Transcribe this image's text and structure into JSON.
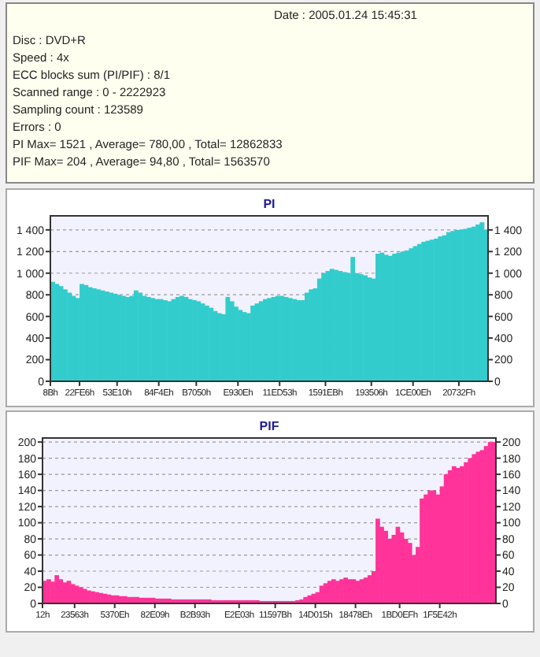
{
  "chart_data": [
    {
      "type": "other",
      "annotations": [
        "Date : 2005.01.24 15:45:31",
        "Disc : DVD+R",
        "Speed : 4x",
        "ECC blocks sum (PI/PIF) : 8/1",
        "Scanned range : 0 - 2222923",
        "Sampling count : 123589",
        "Errors : 0",
        "PI Max= 1521 , Average= 780,00 , Total= 12862833",
        "PIF Max= 204 , Average= 94,80 , Total= 1563570"
      ]
    },
    {
      "type": "bar",
      "title": "PI",
      "color": "#33cccc",
      "grid": "y",
      "categories": [
        "8Bh",
        null,
        null,
        null,
        null,
        null,
        null,
        "22FE6h",
        null,
        null,
        null,
        null,
        null,
        null,
        null,
        null,
        "53E10h",
        null,
        null,
        null,
        null,
        null,
        null,
        null,
        null,
        null,
        "84F4Eh",
        null,
        null,
        null,
        null,
        null,
        null,
        null,
        null,
        "B7050h",
        null,
        null,
        null,
        null,
        null,
        null,
        null,
        null,
        null,
        "E930Eh",
        null,
        null,
        null,
        null,
        null,
        null,
        null,
        null,
        null,
        "11ED53h",
        null,
        null,
        null,
        null,
        null,
        null,
        null,
        null,
        null,
        null,
        "1591EBh",
        null,
        null,
        null,
        null,
        null,
        null,
        null,
        null,
        null,
        null,
        "193506h",
        null,
        null,
        null,
        null,
        null,
        null,
        null,
        null,
        null,
        "1CE00Eh",
        null,
        null,
        null,
        null,
        null,
        null,
        null,
        null,
        null,
        null,
        "20732Fh",
        null,
        null,
        null,
        null,
        null,
        null
      ],
      "values": [
        920,
        900,
        880,
        850,
        820,
        790,
        770,
        900,
        890,
        870,
        860,
        850,
        840,
        830,
        820,
        810,
        800,
        790,
        780,
        790,
        840,
        820,
        790,
        780,
        770,
        760,
        760,
        750,
        740,
        760,
        780,
        790,
        780,
        760,
        750,
        740,
        720,
        700,
        680,
        650,
        630,
        620,
        780,
        740,
        690,
        660,
        640,
        630,
        700,
        720,
        740,
        760,
        770,
        780,
        790,
        790,
        780,
        770,
        760,
        750,
        750,
        820,
        850,
        860,
        950,
        1000,
        1020,
        1040,
        1030,
        1020,
        1010,
        1000,
        1150,
        1000,
        990,
        980,
        960,
        950,
        1180,
        1190,
        1170,
        1160,
        1180,
        1190,
        1200,
        1210,
        1230,
        1250,
        1270,
        1290,
        1300,
        1310,
        1320,
        1340,
        1350,
        1380,
        1390,
        1400,
        1400,
        1410,
        1420,
        1430,
        1450,
        1470,
        1400
      ],
      "ylim": [
        0,
        1530
      ],
      "yticks": [
        0,
        200,
        400,
        600,
        800,
        {
          "value": 1000,
          "label": "1 000"
        },
        {
          "value": 1200,
          "label": "1 200"
        },
        {
          "value": 1400,
          "label": "1 400"
        }
      ],
      "y2lim": [
        0,
        1530
      ],
      "y2ticks": [
        0,
        200,
        400,
        600,
        800,
        {
          "value": 1000,
          "label": "1 000"
        },
        {
          "value": 1200,
          "label": "1 200"
        },
        {
          "value": 1400,
          "label": "1 400"
        }
      ]
    },
    {
      "type": "bar",
      "title": "PIF",
      "color": "#ff3399",
      "grid": "y",
      "categories": [
        "12h",
        null,
        null,
        null,
        null,
        null,
        null,
        null,
        "23563h",
        null,
        null,
        null,
        null,
        null,
        null,
        null,
        null,
        null,
        "5370Eh",
        null,
        null,
        null,
        null,
        null,
        null,
        null,
        null,
        null,
        "82E09h",
        null,
        null,
        null,
        null,
        null,
        null,
        null,
        null,
        null,
        "B2B93h",
        null,
        null,
        null,
        null,
        null,
        null,
        null,
        null,
        null,
        null,
        "E2E03h",
        null,
        null,
        null,
        null,
        null,
        null,
        null,
        null,
        "11597Bh",
        null,
        null,
        null,
        null,
        null,
        null,
        null,
        null,
        null,
        "14D015h",
        null,
        null,
        null,
        null,
        null,
        null,
        null,
        null,
        null,
        "18478Eh",
        null,
        null,
        null,
        null,
        null,
        null,
        null,
        null,
        null,
        null,
        "1BD0EFh",
        null,
        null,
        null,
        null,
        null,
        null,
        null,
        null,
        null,
        "1F5E42h",
        null,
        null,
        null,
        null,
        null,
        null,
        null,
        null,
        null,
        null,
        null,
        null,
        null
      ],
      "values": [
        28,
        30,
        27,
        35,
        30,
        26,
        28,
        24,
        22,
        20,
        18,
        16,
        15,
        14,
        13,
        12,
        11,
        10,
        10,
        9,
        9,
        8,
        8,
        8,
        7,
        7,
        7,
        7,
        6,
        6,
        6,
        6,
        5,
        5,
        5,
        5,
        5,
        5,
        5,
        5,
        5,
        5,
        4,
        4,
        4,
        4,
        4,
        4,
        4,
        4,
        4,
        4,
        4,
        4,
        3,
        3,
        3,
        3,
        3,
        3,
        3,
        3,
        3,
        4,
        5,
        8,
        10,
        12,
        14,
        22,
        25,
        28,
        30,
        28,
        30,
        32,
        30,
        30,
        28,
        30,
        32,
        35,
        40,
        105,
        95,
        90,
        80,
        85,
        95,
        88,
        80,
        75,
        60,
        70,
        130,
        135,
        140,
        140,
        135,
        145,
        160,
        165,
        170,
        168,
        170,
        175,
        180,
        185,
        188,
        190,
        195,
        200,
        200
      ],
      "ylim": [
        0,
        205
      ],
      "yticks": [
        0,
        20,
        40,
        60,
        80,
        100,
        120,
        140,
        160,
        180,
        200
      ],
      "y2lim": [
        0,
        205
      ],
      "y2ticks": [
        0,
        20,
        40,
        60,
        80,
        100,
        120,
        140,
        160,
        180,
        200
      ]
    }
  ]
}
